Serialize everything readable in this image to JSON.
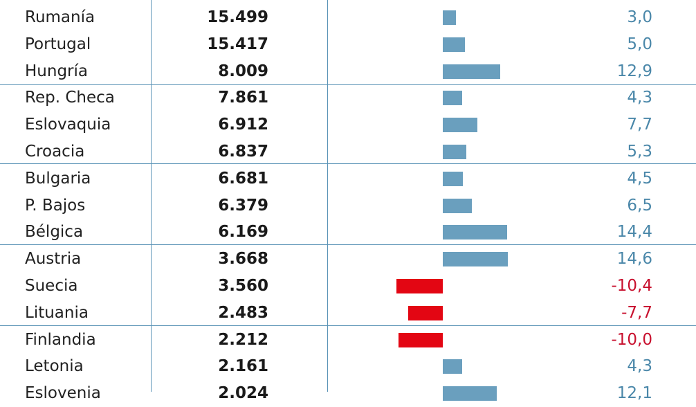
{
  "colors": {
    "positive": "#6a9fbe",
    "negative": "#e30613",
    "positive_text": "#4a87a9",
    "negative_text": "#c8102e",
    "rule": "#5a93b6"
  },
  "chart_data": {
    "type": "table",
    "rows": [
      {
        "country": "Rumanía",
        "value": "15.499",
        "change": "3,0",
        "change_num": 3.0
      },
      {
        "country": "Portugal",
        "value": "15.417",
        "change": "5,0",
        "change_num": 5.0
      },
      {
        "country": "Hungría",
        "value": "8.009",
        "change": "12,9",
        "change_num": 12.9
      },
      {
        "country": "Rep. Checa",
        "value": "7.861",
        "change": "4,3",
        "change_num": 4.3
      },
      {
        "country": "Eslovaquia",
        "value": "6.912",
        "change": "7,7",
        "change_num": 7.7
      },
      {
        "country": "Croacia",
        "value": "6.837",
        "change": "5,3",
        "change_num": 5.3
      },
      {
        "country": "Bulgaria",
        "value": "6.681",
        "change": "4,5",
        "change_num": 4.5
      },
      {
        "country": "P. Bajos",
        "value": "6.379",
        "change": "6,5",
        "change_num": 6.5
      },
      {
        "country": "Bélgica",
        "value": "6.169",
        "change": "14,4",
        "change_num": 14.4
      },
      {
        "country": "Austria",
        "value": "3.668",
        "change": "14,6",
        "change_num": 14.6
      },
      {
        "country": "Suecia",
        "value": "3.560",
        "change": "-10,4",
        "change_num": -10.4
      },
      {
        "country": "Lituania",
        "value": "2.483",
        "change": "-7,7",
        "change_num": -7.7
      },
      {
        "country": "Finlandia",
        "value": "2.212",
        "change": "-10,0",
        "change_num": -10.0
      },
      {
        "country": "Letonia",
        "value": "2.161",
        "change": "4,3",
        "change_num": 4.3
      },
      {
        "country": "Eslovenia",
        "value": "2.024",
        "change": "12,1",
        "change_num": 12.1
      }
    ]
  }
}
